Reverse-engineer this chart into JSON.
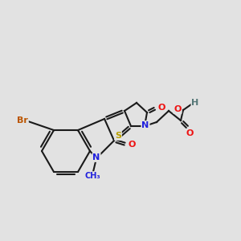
{
  "bg_color": "#e2e2e2",
  "bond_color": "#1a1a1a",
  "atom_colors": {
    "N": "#2020dd",
    "O": "#ee1111",
    "S": "#b8a000",
    "Br": "#bb5500",
    "H": "#557777",
    "C": "#1a1a1a"
  },
  "figsize": [
    3.0,
    3.0
  ],
  "dpi": 100,
  "lw": 1.5,
  "fs": 8.0,
  "fs_small": 7.5
}
